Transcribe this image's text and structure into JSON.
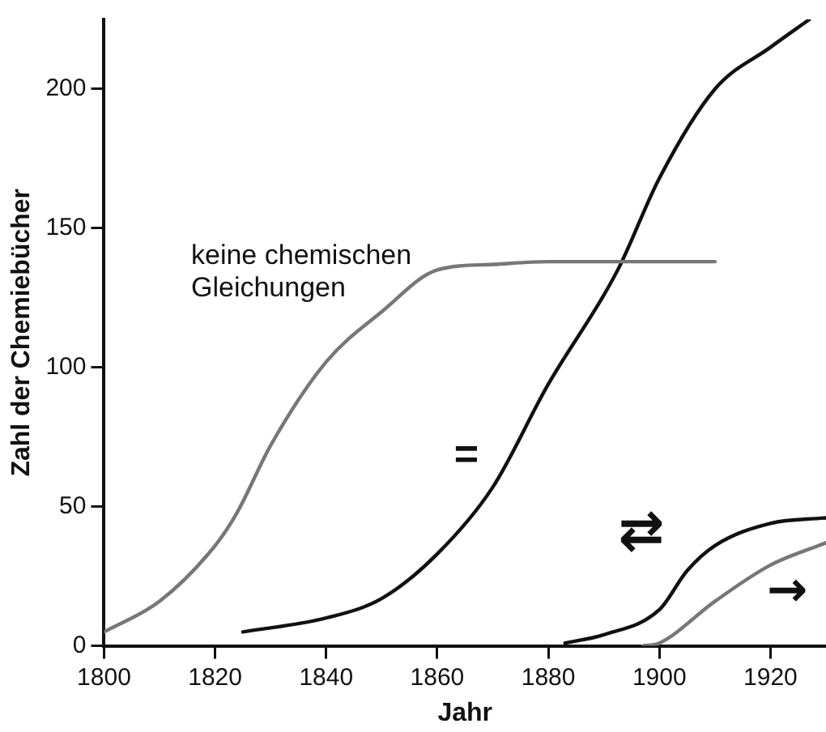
{
  "chart_data": {
    "type": "line",
    "xlabel": "Jahr",
    "ylabel": "Zahl der Chemiebücher",
    "xlim": [
      1800,
      1930
    ],
    "xticks": [
      1800,
      1820,
      1840,
      1860,
      1880,
      1900,
      1920
    ],
    "ylim": [
      0,
      225
    ],
    "yticks": [
      0,
      50,
      100,
      150,
      200
    ],
    "grid": false,
    "legend": false,
    "marker": "none",
    "line_style": "solid",
    "series": [
      {
        "name": "keine chemischen Gleichungen",
        "color": "#777777",
        "x": [
          1800,
          1810,
          1820,
          1824,
          1830,
          1840,
          1850,
          1860,
          1870,
          1880,
          1895,
          1910
        ],
        "values": [
          5,
          16,
          36,
          48,
          72,
          102,
          120,
          135,
          137,
          138,
          138,
          138
        ]
      },
      {
        "name": "=",
        "color": "#111111",
        "x": [
          1825,
          1840,
          1850,
          1860,
          1870,
          1880,
          1890,
          1893,
          1900,
          1910,
          1920,
          1927
        ],
        "values": [
          5,
          10,
          17,
          33,
          57,
          94,
          126,
          137,
          168,
          200,
          215,
          225
        ]
      },
      {
        "name": "⇄",
        "color": "#111111",
        "x": [
          1883,
          1890,
          1900,
          1905,
          1910,
          1920,
          1930
        ],
        "values": [
          1,
          4,
          13,
          27,
          36,
          44,
          46
        ]
      },
      {
        "name": "→",
        "color": "#777777",
        "x": [
          1897,
          1900,
          1910,
          1920,
          1930
        ],
        "values": [
          0,
          1,
          16,
          29,
          37
        ]
      }
    ]
  }
}
